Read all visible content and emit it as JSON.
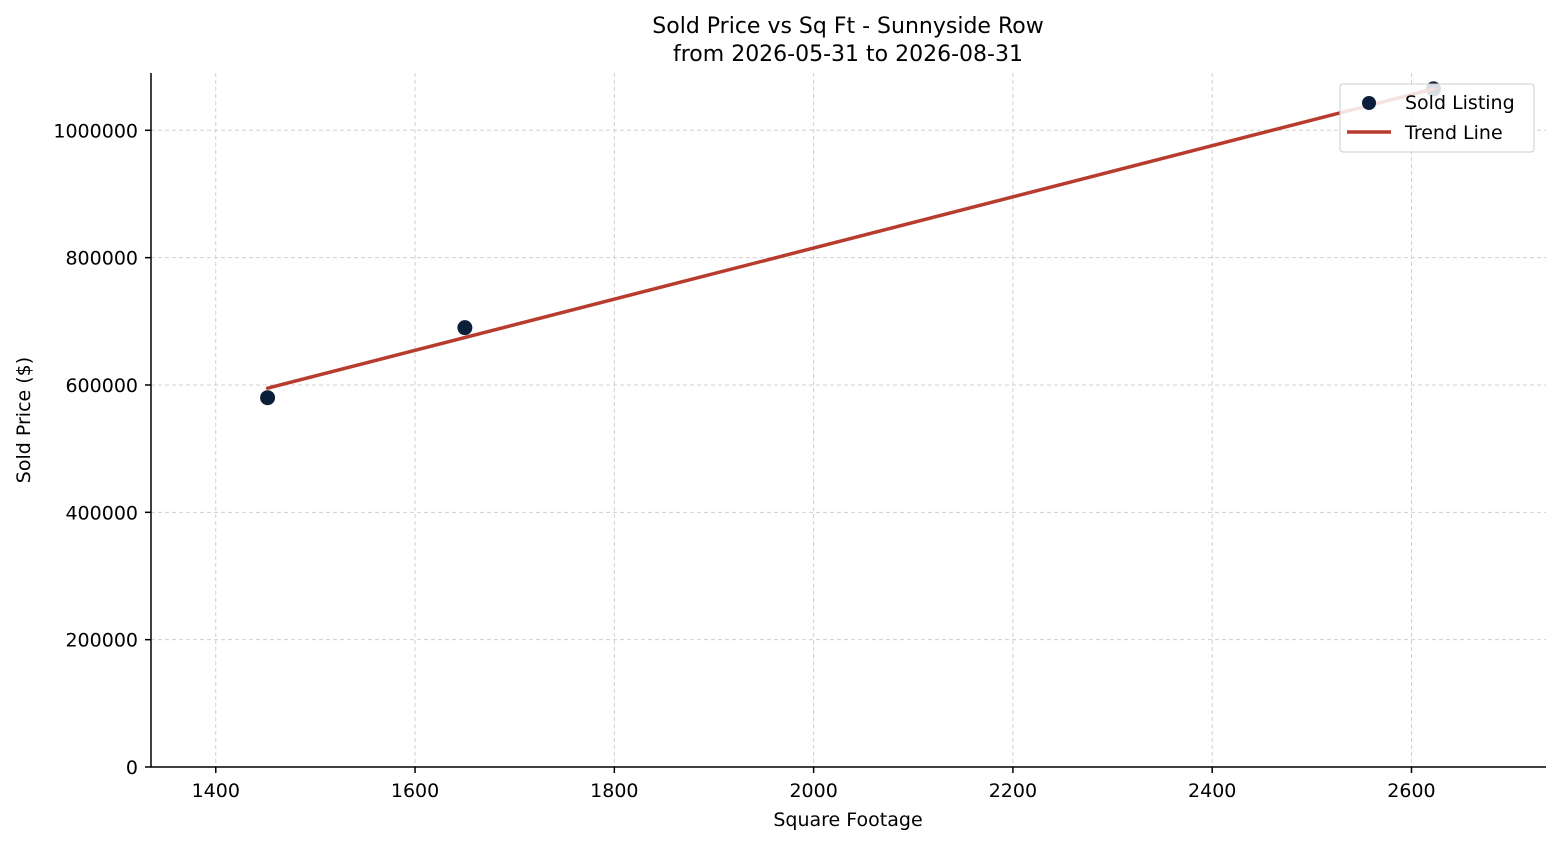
{
  "chart_data": {
    "type": "scatter",
    "title": "Sold Price vs Sq Ft - Sunnyside Row",
    "subtitle": "from 2026-05-31 to 2026-08-31",
    "xlabel": "Square Footage",
    "ylabel": "Sold Price ($)",
    "xlim": [
      1335,
      2735
    ],
    "ylim": [
      0,
      1090000
    ],
    "xticks": [
      1400,
      1600,
      1800,
      2000,
      2200,
      2400,
      2600
    ],
    "xtick_labels": [
      "1400",
      "1600",
      "1800",
      "2000",
      "2200",
      "2400",
      "2600"
    ],
    "yticks": [
      0,
      200000,
      400000,
      600000,
      800000,
      1000000
    ],
    "ytick_labels": [
      "0",
      "200000",
      "400000",
      "600000",
      "800000",
      "1000000"
    ],
    "grid": true,
    "legend_position": "top-right",
    "series": [
      {
        "name": "Sold Listing",
        "kind": "scatter",
        "color": "#0b1f3a",
        "points": [
          {
            "x": 1452,
            "y": 580000
          },
          {
            "x": 1650,
            "y": 690000
          },
          {
            "x": 2622,
            "y": 1065000
          }
        ]
      },
      {
        "name": "Trend Line",
        "kind": "line",
        "color": "#b83c2e",
        "points": [
          {
            "x": 1452,
            "y": 595000
          },
          {
            "x": 2622,
            "y": 1065000
          }
        ]
      }
    ]
  }
}
